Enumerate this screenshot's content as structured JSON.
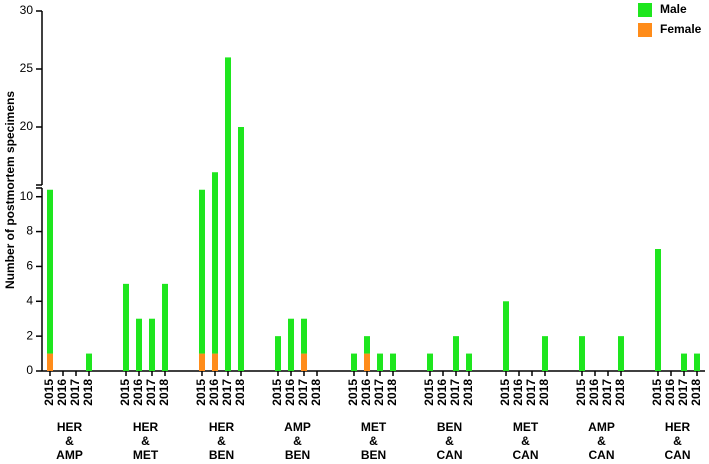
{
  "chart_data": {
    "type": "stacked-bar",
    "y_label": "Number of postmortem specimens",
    "categories": [
      "2015",
      "2016",
      "2017",
      "2018",
      "2015",
      "2016",
      "2017",
      "2018",
      "2015",
      "2016",
      "2017",
      "2018",
      "2015",
      "2016",
      "2017",
      "2018",
      "2015",
      "2016",
      "2017",
      "2018",
      "2015",
      "2016",
      "2017",
      "2018",
      "2015",
      "2016",
      "2017",
      "2018",
      "2015",
      "2016",
      "2017",
      "2018",
      "2015",
      "2016",
      "2017",
      "2018"
    ],
    "groups": [
      [
        "HER",
        "&",
        "AMP"
      ],
      [
        "HER",
        "&",
        "MET"
      ],
      [
        "HER",
        "&",
        "BEN"
      ],
      [
        "AMP",
        "&",
        "BEN"
      ],
      [
        "MET",
        "&",
        "BEN"
      ],
      [
        "BEN",
        "&",
        "CAN"
      ],
      [
        "MET",
        "&",
        "CAN"
      ],
      [
        "AMP",
        "&",
        "CAN"
      ],
      [
        "HER",
        "&",
        "CAN"
      ]
    ],
    "series": [
      {
        "name": "Female",
        "color": "#ff8c1a",
        "values": [
          1,
          0,
          0,
          0,
          0,
          0,
          0,
          0,
          1,
          1,
          0,
          0,
          0,
          0,
          1,
          0,
          0,
          1,
          0,
          0,
          0,
          0,
          0,
          0,
          0,
          0,
          0,
          0,
          0,
          0,
          0,
          0,
          0,
          0,
          0,
          0
        ]
      },
      {
        "name": "Male",
        "color": "#1ee61e",
        "values": [
          9.4,
          0,
          0,
          1,
          5,
          3,
          3,
          5,
          9.4,
          15.1,
          26,
          20,
          2,
          3,
          2,
          0,
          1,
          1,
          1,
          1,
          1,
          0,
          2,
          1,
          4,
          0,
          0,
          2,
          2,
          0,
          0,
          2,
          7,
          0,
          1,
          1
        ]
      }
    ],
    "y_segments": [
      {
        "ylim": [
          0,
          10.5
        ],
        "yticks": [
          0,
          2,
          4,
          6,
          8,
          10
        ]
      },
      {
        "ylim": [
          15,
          30
        ],
        "yticks": [
          20,
          25,
          30
        ]
      }
    ],
    "legend": "top-right"
  }
}
